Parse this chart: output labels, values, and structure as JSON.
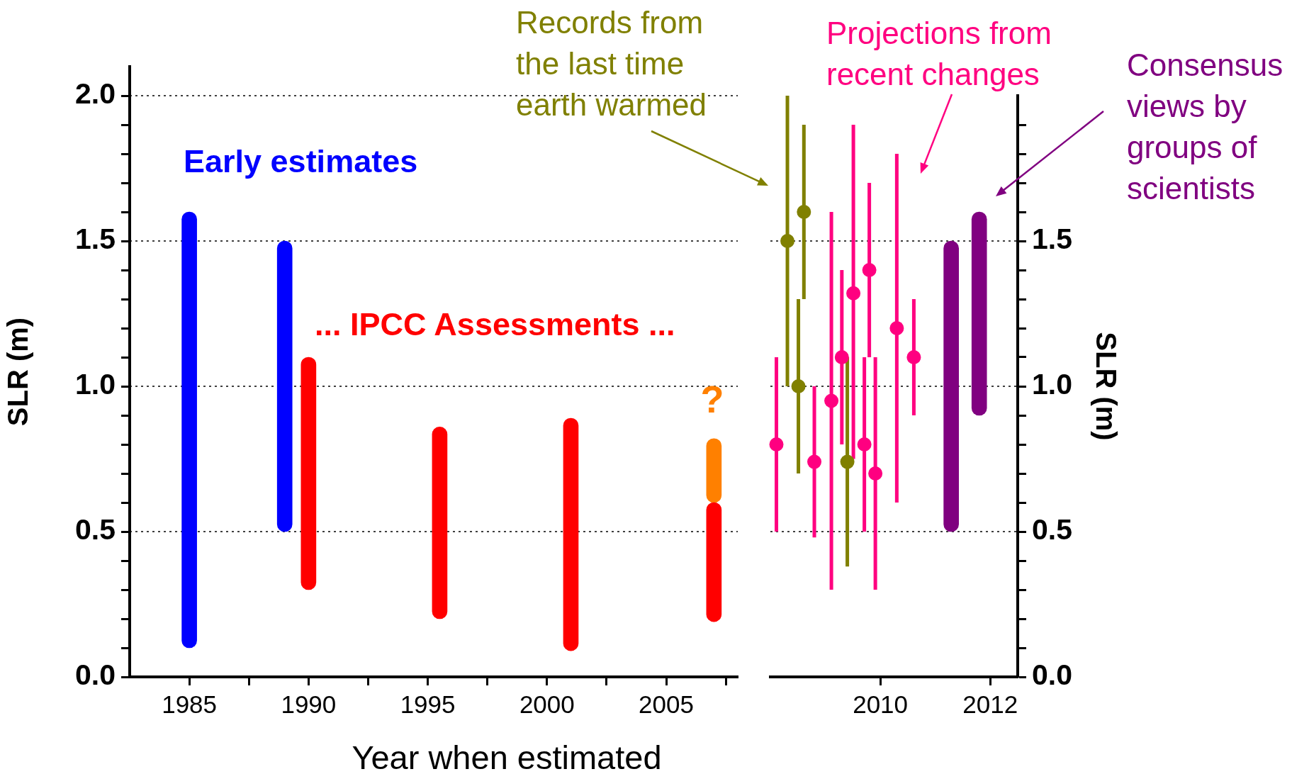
{
  "chart_data": [
    {
      "type": "bar",
      "xlabel": "Year when estimated",
      "ylabel": "SLR (m)",
      "xlim": [
        1982.5,
        2008
      ],
      "xticks": [
        1985,
        {
          "value": 1987.5,
          "label": null
        },
        1990,
        {
          "value": 1992.5,
          "label": null
        },
        1995,
        {
          "value": 1997.5,
          "label": null
        },
        2000,
        {
          "value": 2002.5,
          "label": null
        },
        2005,
        {
          "value": 2007.5,
          "label": null
        }
      ],
      "ylim": [
        0,
        2.1
      ],
      "yticks": [
        {
          "value": 0,
          "label": "0.0"
        },
        {
          "value": 0.1,
          "label": null
        },
        {
          "value": 0.2,
          "label": null
        },
        {
          "value": 0.3,
          "label": null
        },
        {
          "value": 0.4,
          "label": null
        },
        0.5,
        {
          "value": 0.6,
          "label": null
        },
        {
          "value": 0.7,
          "label": null
        },
        {
          "value": 0.8,
          "label": null
        },
        {
          "value": 0.9,
          "label": null
        },
        {
          "value": 1,
          "label": "1.0"
        },
        {
          "value": 1.1,
          "label": null
        },
        {
          "value": 1.2,
          "label": null
        },
        {
          "value": 1.3,
          "label": null
        },
        {
          "value": 1.4,
          "label": null
        },
        1.5,
        {
          "value": 1.6,
          "label": null
        },
        {
          "value": 1.7,
          "label": null
        },
        {
          "value": 1.8,
          "label": null
        },
        {
          "value": 1.9,
          "label": null
        },
        {
          "value": 2,
          "label": "2.0"
        }
      ],
      "grid": "y",
      "series": [
        {
          "name": "Early estimates",
          "color": "#0000ff",
          "x": [
            1985,
            1989
          ],
          "base": [
            0.1,
            0.5
          ],
          "values": [
            1.5,
            1.0
          ]
        },
        {
          "name": "... IPCC Assessments ...",
          "color": "#ff0000",
          "x": [
            1990,
            1995.5,
            2001,
            2007
          ],
          "base": [
            0.3,
            0.2,
            0.09,
            0.19
          ],
          "values": [
            0.8,
            0.66,
            0.8,
            0.41
          ]
        },
        {
          "name": "?",
          "color": "#ff8000",
          "x": [
            2007
          ],
          "base": [
            0.6
          ],
          "values": [
            0.22
          ]
        }
      ]
    },
    {
      "type": "scatter",
      "y2label": "SLR (m)",
      "xlim": [
        2008,
        2012.5
      ],
      "xticks": [
        2010,
        2012
      ],
      "y2lim": [
        0,
        2
      ],
      "y2ticks": [
        {
          "value": 0,
          "label": "0.0"
        },
        {
          "value": 0.1,
          "label": null
        },
        {
          "value": 0.2,
          "label": null
        },
        {
          "value": 0.3,
          "label": null
        },
        {
          "value": 0.4,
          "label": null
        },
        0.5,
        {
          "value": 0.6,
          "label": null
        },
        {
          "value": 0.7,
          "label": null
        },
        {
          "value": 0.8,
          "label": null
        },
        {
          "value": 0.9,
          "label": null
        },
        {
          "value": 1,
          "label": "1.0"
        },
        {
          "value": 1.1,
          "label": null
        },
        {
          "value": 1.2,
          "label": null
        },
        {
          "value": 1.3,
          "label": null
        },
        {
          "value": 1.4,
          "label": null
        },
        1.5,
        {
          "value": 1.6,
          "label": null
        },
        {
          "value": 1.7,
          "label": null
        },
        {
          "value": 1.8,
          "label": null
        },
        {
          "value": 1.9,
          "label": null
        }
      ],
      "grid": "y",
      "marker": "circle",
      "series": [
        {
          "name": "Records from the last time earth warmed",
          "color": "#808000",
          "axis": "y2",
          "x": [
            2008.31,
            2008.51,
            2008.61,
            2009.4
          ],
          "values": [
            1.5,
            1.0,
            1.6,
            0.74
          ],
          "errors": [
            [
              1.0,
              2.0
            ],
            [
              0.7,
              1.3
            ],
            [
              1.3,
              1.9
            ],
            [
              0.38,
              1.1
            ]
          ]
        },
        {
          "name": "Projections from recent changes",
          "color": "#ff0080",
          "axis": "y2",
          "x": [
            2008.11,
            2008.8,
            2009.11,
            2009.3,
            2009.51,
            2009.71,
            2009.8,
            2009.91,
            2010.3,
            2010.61
          ],
          "values": [
            0.8,
            0.74,
            0.95,
            1.1,
            1.32,
            0.8,
            1.4,
            0.7,
            1.2,
            1.1
          ],
          "errors": [
            [
              0.5,
              1.1
            ],
            [
              0.48,
              1.0
            ],
            [
              0.3,
              1.6
            ],
            [
              0.8,
              1.4
            ],
            [
              0.75,
              1.9
            ],
            [
              0.5,
              1.1
            ],
            [
              1.1,
              1.7
            ],
            [
              0.3,
              1.1
            ],
            [
              0.6,
              1.8
            ],
            [
              0.9,
              1.3
            ]
          ]
        },
        {
          "name": "Consensus views by groups of scientists",
          "type": "bar",
          "color": "#800080",
          "axis": "y2",
          "x": [
            2011.29,
            2011.8
          ],
          "base": [
            0.5,
            0.9
          ],
          "values": [
            1.0,
            0.7
          ]
        }
      ]
    }
  ]
}
